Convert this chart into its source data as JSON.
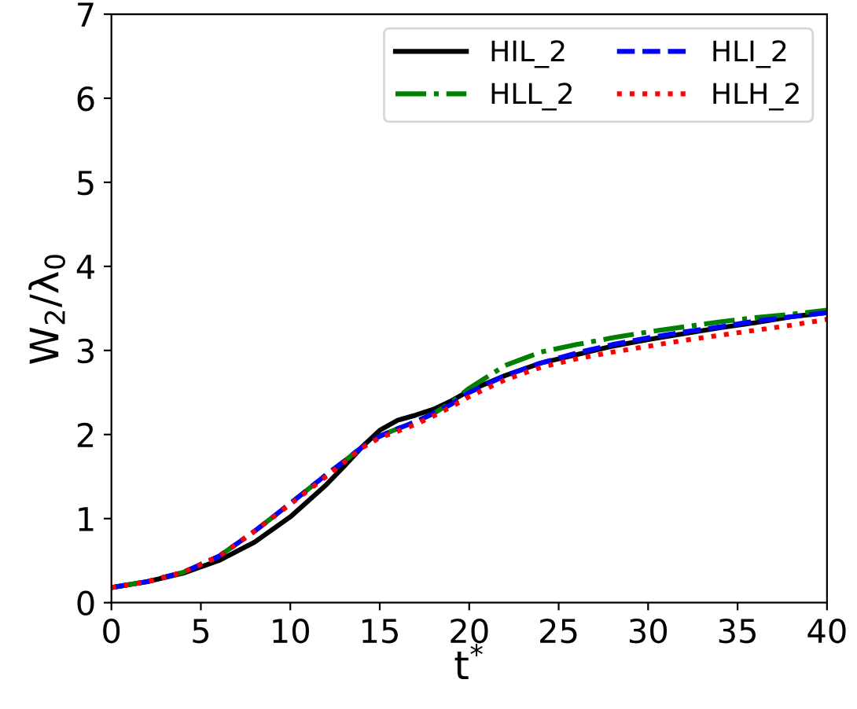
{
  "chart_data": {
    "type": "line",
    "xlabel": "t$^{*}$",
    "ylabel": "W$_{2}$/λ$_{0}$",
    "x": [
      0,
      2,
      4,
      6,
      8,
      10,
      12,
      13,
      14,
      15,
      16,
      17,
      18,
      19,
      20,
      22,
      24,
      26,
      28,
      30,
      32,
      34,
      36,
      38,
      40
    ],
    "series": [
      {
        "name": "HIL_2",
        "color": "#000000",
        "line_style": "solid",
        "values": [
          0.18,
          0.25,
          0.35,
          0.5,
          0.72,
          1.02,
          1.4,
          1.62,
          1.85,
          2.05,
          2.17,
          2.23,
          2.3,
          2.4,
          2.52,
          2.7,
          2.85,
          2.95,
          3.05,
          3.13,
          3.2,
          3.27,
          3.33,
          3.4,
          3.45
        ]
      },
      {
        "name": "HLL_2",
        "color": "#008000",
        "line_style": "dashdot",
        "values": [
          0.18,
          0.25,
          0.36,
          0.55,
          0.85,
          1.18,
          1.52,
          1.68,
          1.85,
          1.98,
          2.07,
          2.15,
          2.25,
          2.38,
          2.55,
          2.82,
          2.98,
          3.07,
          3.15,
          3.22,
          3.28,
          3.34,
          3.39,
          3.43,
          3.48
        ]
      },
      {
        "name": "HLI_2",
        "color": "#0000ff",
        "line_style": "dashed",
        "values": [
          0.18,
          0.25,
          0.36,
          0.55,
          0.85,
          1.18,
          1.52,
          1.68,
          1.85,
          1.98,
          2.07,
          2.15,
          2.25,
          2.36,
          2.5,
          2.7,
          2.85,
          2.97,
          3.07,
          3.15,
          3.22,
          3.28,
          3.35,
          3.4,
          3.45
        ]
      },
      {
        "name": "HLH_2",
        "color": "#ff0000",
        "line_style": "dotted",
        "values": [
          0.18,
          0.25,
          0.36,
          0.55,
          0.85,
          1.17,
          1.5,
          1.67,
          1.84,
          1.96,
          2.04,
          2.12,
          2.22,
          2.33,
          2.45,
          2.65,
          2.8,
          2.9,
          2.98,
          3.05,
          3.12,
          3.18,
          3.24,
          3.3,
          3.37
        ]
      }
    ],
    "xlim": [
      0,
      40
    ],
    "xticks": [
      0,
      5,
      10,
      15,
      20,
      25,
      30,
      35,
      40
    ],
    "ylim": [
      0,
      7
    ],
    "yticks": [
      0,
      1,
      2,
      3,
      4,
      5,
      6,
      7
    ],
    "grid": false,
    "legend": "top right",
    "marker": "none"
  }
}
